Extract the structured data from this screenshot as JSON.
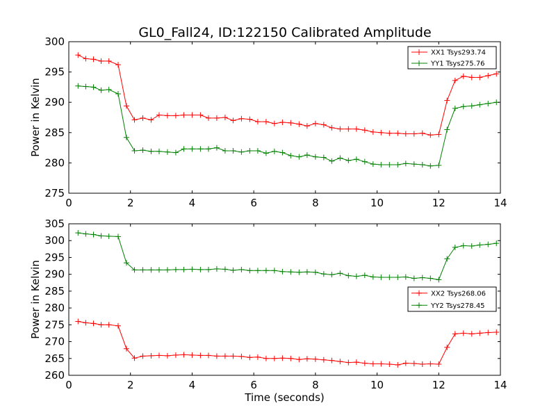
{
  "title": "GL0_Fall24, ID:122150 Calibrated Amplitude",
  "colors": {
    "red": "#ff0000",
    "green": "#008000"
  },
  "chart_data": [
    {
      "type": "line",
      "xlabel": "",
      "ylabel": "Power in Kelvin",
      "xlim": [
        0,
        14
      ],
      "ylim": [
        275,
        300
      ],
      "xticks": [
        0,
        2,
        4,
        6,
        8,
        10,
        12,
        14
      ],
      "yticks": [
        275,
        280,
        285,
        290,
        295,
        300
      ],
      "grid": false,
      "legend": "top-right",
      "series": [
        {
          "name": "XX1 Tsys293.74",
          "color": "#ff0000",
          "marker": "+",
          "x": [
            0.3,
            0.55,
            0.8,
            1.05,
            1.3,
            1.6,
            1.87,
            2.13,
            2.4,
            2.67,
            2.93,
            3.2,
            3.47,
            3.73,
            4.0,
            4.27,
            4.53,
            4.8,
            5.07,
            5.33,
            5.6,
            5.87,
            6.13,
            6.4,
            6.67,
            6.93,
            7.2,
            7.47,
            7.73,
            8.0,
            8.27,
            8.53,
            8.8,
            9.07,
            9.33,
            9.6,
            9.87,
            10.13,
            10.4,
            10.67,
            10.93,
            11.2,
            11.47,
            11.73,
            12.0,
            12.27,
            12.53,
            12.8,
            13.07,
            13.33,
            13.6,
            13.87
          ],
          "y": [
            297.8,
            297.2,
            297.1,
            296.8,
            296.8,
            296.2,
            289.4,
            287.1,
            287.4,
            287.1,
            287.9,
            287.8,
            287.8,
            287.9,
            287.9,
            287.9,
            287.4,
            287.4,
            287.5,
            287.0,
            287.3,
            287.2,
            286.8,
            286.8,
            286.5,
            286.7,
            286.6,
            286.4,
            286.1,
            286.5,
            286.3,
            285.8,
            285.6,
            285.6,
            285.6,
            285.4,
            285.1,
            285.0,
            284.9,
            284.9,
            284.8,
            284.8,
            284.9,
            284.6,
            284.7,
            290.3,
            293.6,
            294.3,
            294.1,
            294.1,
            294.4,
            294.7
          ]
        },
        {
          "name": "YY1 Tsys275.76",
          "color": "#008000",
          "marker": "+",
          "x": [
            0.3,
            0.55,
            0.8,
            1.05,
            1.3,
            1.6,
            1.87,
            2.13,
            2.4,
            2.67,
            2.93,
            3.2,
            3.47,
            3.73,
            4.0,
            4.27,
            4.53,
            4.8,
            5.07,
            5.33,
            5.6,
            5.87,
            6.13,
            6.4,
            6.67,
            6.93,
            7.2,
            7.47,
            7.73,
            8.0,
            8.27,
            8.53,
            8.8,
            9.07,
            9.33,
            9.6,
            9.87,
            10.13,
            10.4,
            10.67,
            10.93,
            11.2,
            11.47,
            11.73,
            12.0,
            12.27,
            12.53,
            12.8,
            13.07,
            13.33,
            13.6,
            13.87
          ],
          "y": [
            292.7,
            292.6,
            292.5,
            292.0,
            292.1,
            291.4,
            284.2,
            282.0,
            282.1,
            281.9,
            281.9,
            281.8,
            281.7,
            282.3,
            282.3,
            282.3,
            282.3,
            282.5,
            282.0,
            282.0,
            281.8,
            282.0,
            282.0,
            281.6,
            281.9,
            281.7,
            281.2,
            281.0,
            281.3,
            281.0,
            280.9,
            280.3,
            280.8,
            280.4,
            280.6,
            280.2,
            279.8,
            279.7,
            279.7,
            279.7,
            279.9,
            279.8,
            279.7,
            279.5,
            279.6,
            285.5,
            289.0,
            289.3,
            289.4,
            289.6,
            289.8,
            290.0
          ]
        }
      ]
    },
    {
      "type": "line",
      "xlabel": "Time (seconds)",
      "ylabel": "Power in Kelvin",
      "xlim": [
        0,
        14
      ],
      "ylim": [
        260,
        305
      ],
      "xticks": [
        0,
        2,
        4,
        6,
        8,
        10,
        12,
        14
      ],
      "yticks": [
        260,
        265,
        270,
        275,
        280,
        285,
        290,
        295,
        300,
        305
      ],
      "grid": false,
      "legend": "right",
      "series": [
        {
          "name": "XX2 Tsys268.06",
          "color": "#ff0000",
          "marker": "+",
          "x": [
            0.3,
            0.55,
            0.8,
            1.05,
            1.3,
            1.6,
            1.87,
            2.13,
            2.4,
            2.67,
            2.93,
            3.2,
            3.47,
            3.73,
            4.0,
            4.27,
            4.53,
            4.8,
            5.07,
            5.33,
            5.6,
            5.87,
            6.13,
            6.4,
            6.67,
            6.93,
            7.2,
            7.47,
            7.73,
            8.0,
            8.27,
            8.53,
            8.8,
            9.07,
            9.33,
            9.6,
            9.87,
            10.13,
            10.4,
            10.67,
            10.93,
            11.2,
            11.47,
            11.73,
            12.0,
            12.27,
            12.53,
            12.8,
            13.07,
            13.33,
            13.6,
            13.87
          ],
          "y": [
            276.0,
            275.6,
            275.4,
            275.0,
            275.0,
            274.7,
            267.9,
            265.1,
            265.7,
            265.8,
            265.9,
            265.8,
            266.0,
            266.1,
            266.0,
            265.9,
            265.9,
            265.7,
            265.7,
            265.7,
            265.6,
            265.3,
            265.4,
            265.0,
            265.0,
            265.1,
            265.0,
            264.7,
            264.9,
            264.8,
            264.6,
            264.4,
            264.1,
            263.8,
            263.9,
            263.6,
            263.4,
            263.4,
            263.3,
            263.1,
            263.6,
            263.5,
            263.3,
            263.4,
            263.3,
            268.3,
            272.3,
            272.5,
            272.3,
            272.5,
            272.7,
            272.8
          ]
        },
        {
          "name": "YY2 Tsys278.45",
          "color": "#008000",
          "marker": "+",
          "x": [
            0.3,
            0.55,
            0.8,
            1.05,
            1.3,
            1.6,
            1.87,
            2.13,
            2.4,
            2.67,
            2.93,
            3.2,
            3.47,
            3.73,
            4.0,
            4.27,
            4.53,
            4.8,
            5.07,
            5.33,
            5.6,
            5.87,
            6.13,
            6.4,
            6.67,
            6.93,
            7.2,
            7.47,
            7.73,
            8.0,
            8.27,
            8.53,
            8.8,
            9.07,
            9.33,
            9.6,
            9.87,
            10.13,
            10.4,
            10.67,
            10.93,
            11.2,
            11.47,
            11.73,
            12.0,
            12.27,
            12.53,
            12.8,
            13.07,
            13.33,
            13.6,
            13.87
          ],
          "y": [
            302.3,
            302.0,
            301.8,
            301.4,
            301.3,
            301.2,
            293.4,
            291.3,
            291.3,
            291.3,
            291.3,
            291.3,
            291.4,
            291.4,
            291.5,
            291.4,
            291.4,
            291.6,
            291.5,
            291.2,
            291.4,
            291.1,
            291.1,
            291.1,
            291.1,
            290.8,
            290.7,
            290.6,
            290.7,
            290.6,
            290.1,
            289.9,
            290.3,
            289.6,
            289.4,
            289.7,
            289.2,
            289.1,
            289.1,
            289.1,
            289.2,
            288.8,
            289.0,
            288.8,
            288.4,
            294.6,
            298.0,
            298.5,
            298.4,
            298.7,
            298.9,
            299.2
          ]
        }
      ]
    }
  ]
}
